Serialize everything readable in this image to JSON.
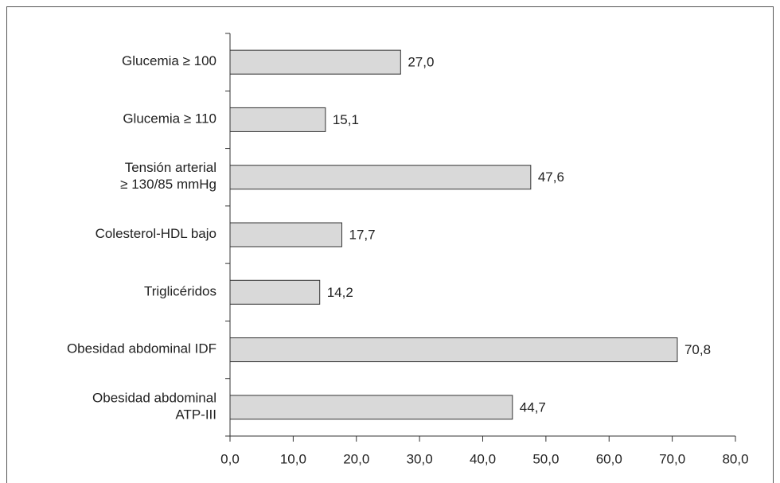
{
  "chart_data": {
    "type": "bar",
    "orientation": "horizontal",
    "categories": [
      "Glucemia ≥ 100",
      "Glucemia ≥ 110",
      "Tensión arterial\n≥ 130/85 mmHg",
      "Colesterol-HDL bajo",
      "Triglicéridos",
      "Obesidad abdominal IDF",
      "Obesidad abdominal\nATP-III"
    ],
    "values": [
      27.0,
      15.1,
      47.6,
      17.7,
      14.2,
      70.8,
      44.7
    ],
    "value_labels": [
      "27,0",
      "15,1",
      "47,6",
      "17,7",
      "14,2",
      "70,8",
      "44,7"
    ],
    "color": "#d9d9d9",
    "xlim": [
      0,
      80
    ],
    "xticks": [
      {
        "value": 0,
        "label": "0,0"
      },
      {
        "value": 10,
        "label": "10,0"
      },
      {
        "value": 20,
        "label": "20,0"
      },
      {
        "value": 30,
        "label": "30,0"
      },
      {
        "value": 40,
        "label": "40,0"
      },
      {
        "value": 50,
        "label": "50,0"
      },
      {
        "value": 60,
        "label": "60,0"
      },
      {
        "value": 70,
        "label": "70,0"
      },
      {
        "value": 80,
        "label": "80,0"
      }
    ],
    "grid": false
  }
}
